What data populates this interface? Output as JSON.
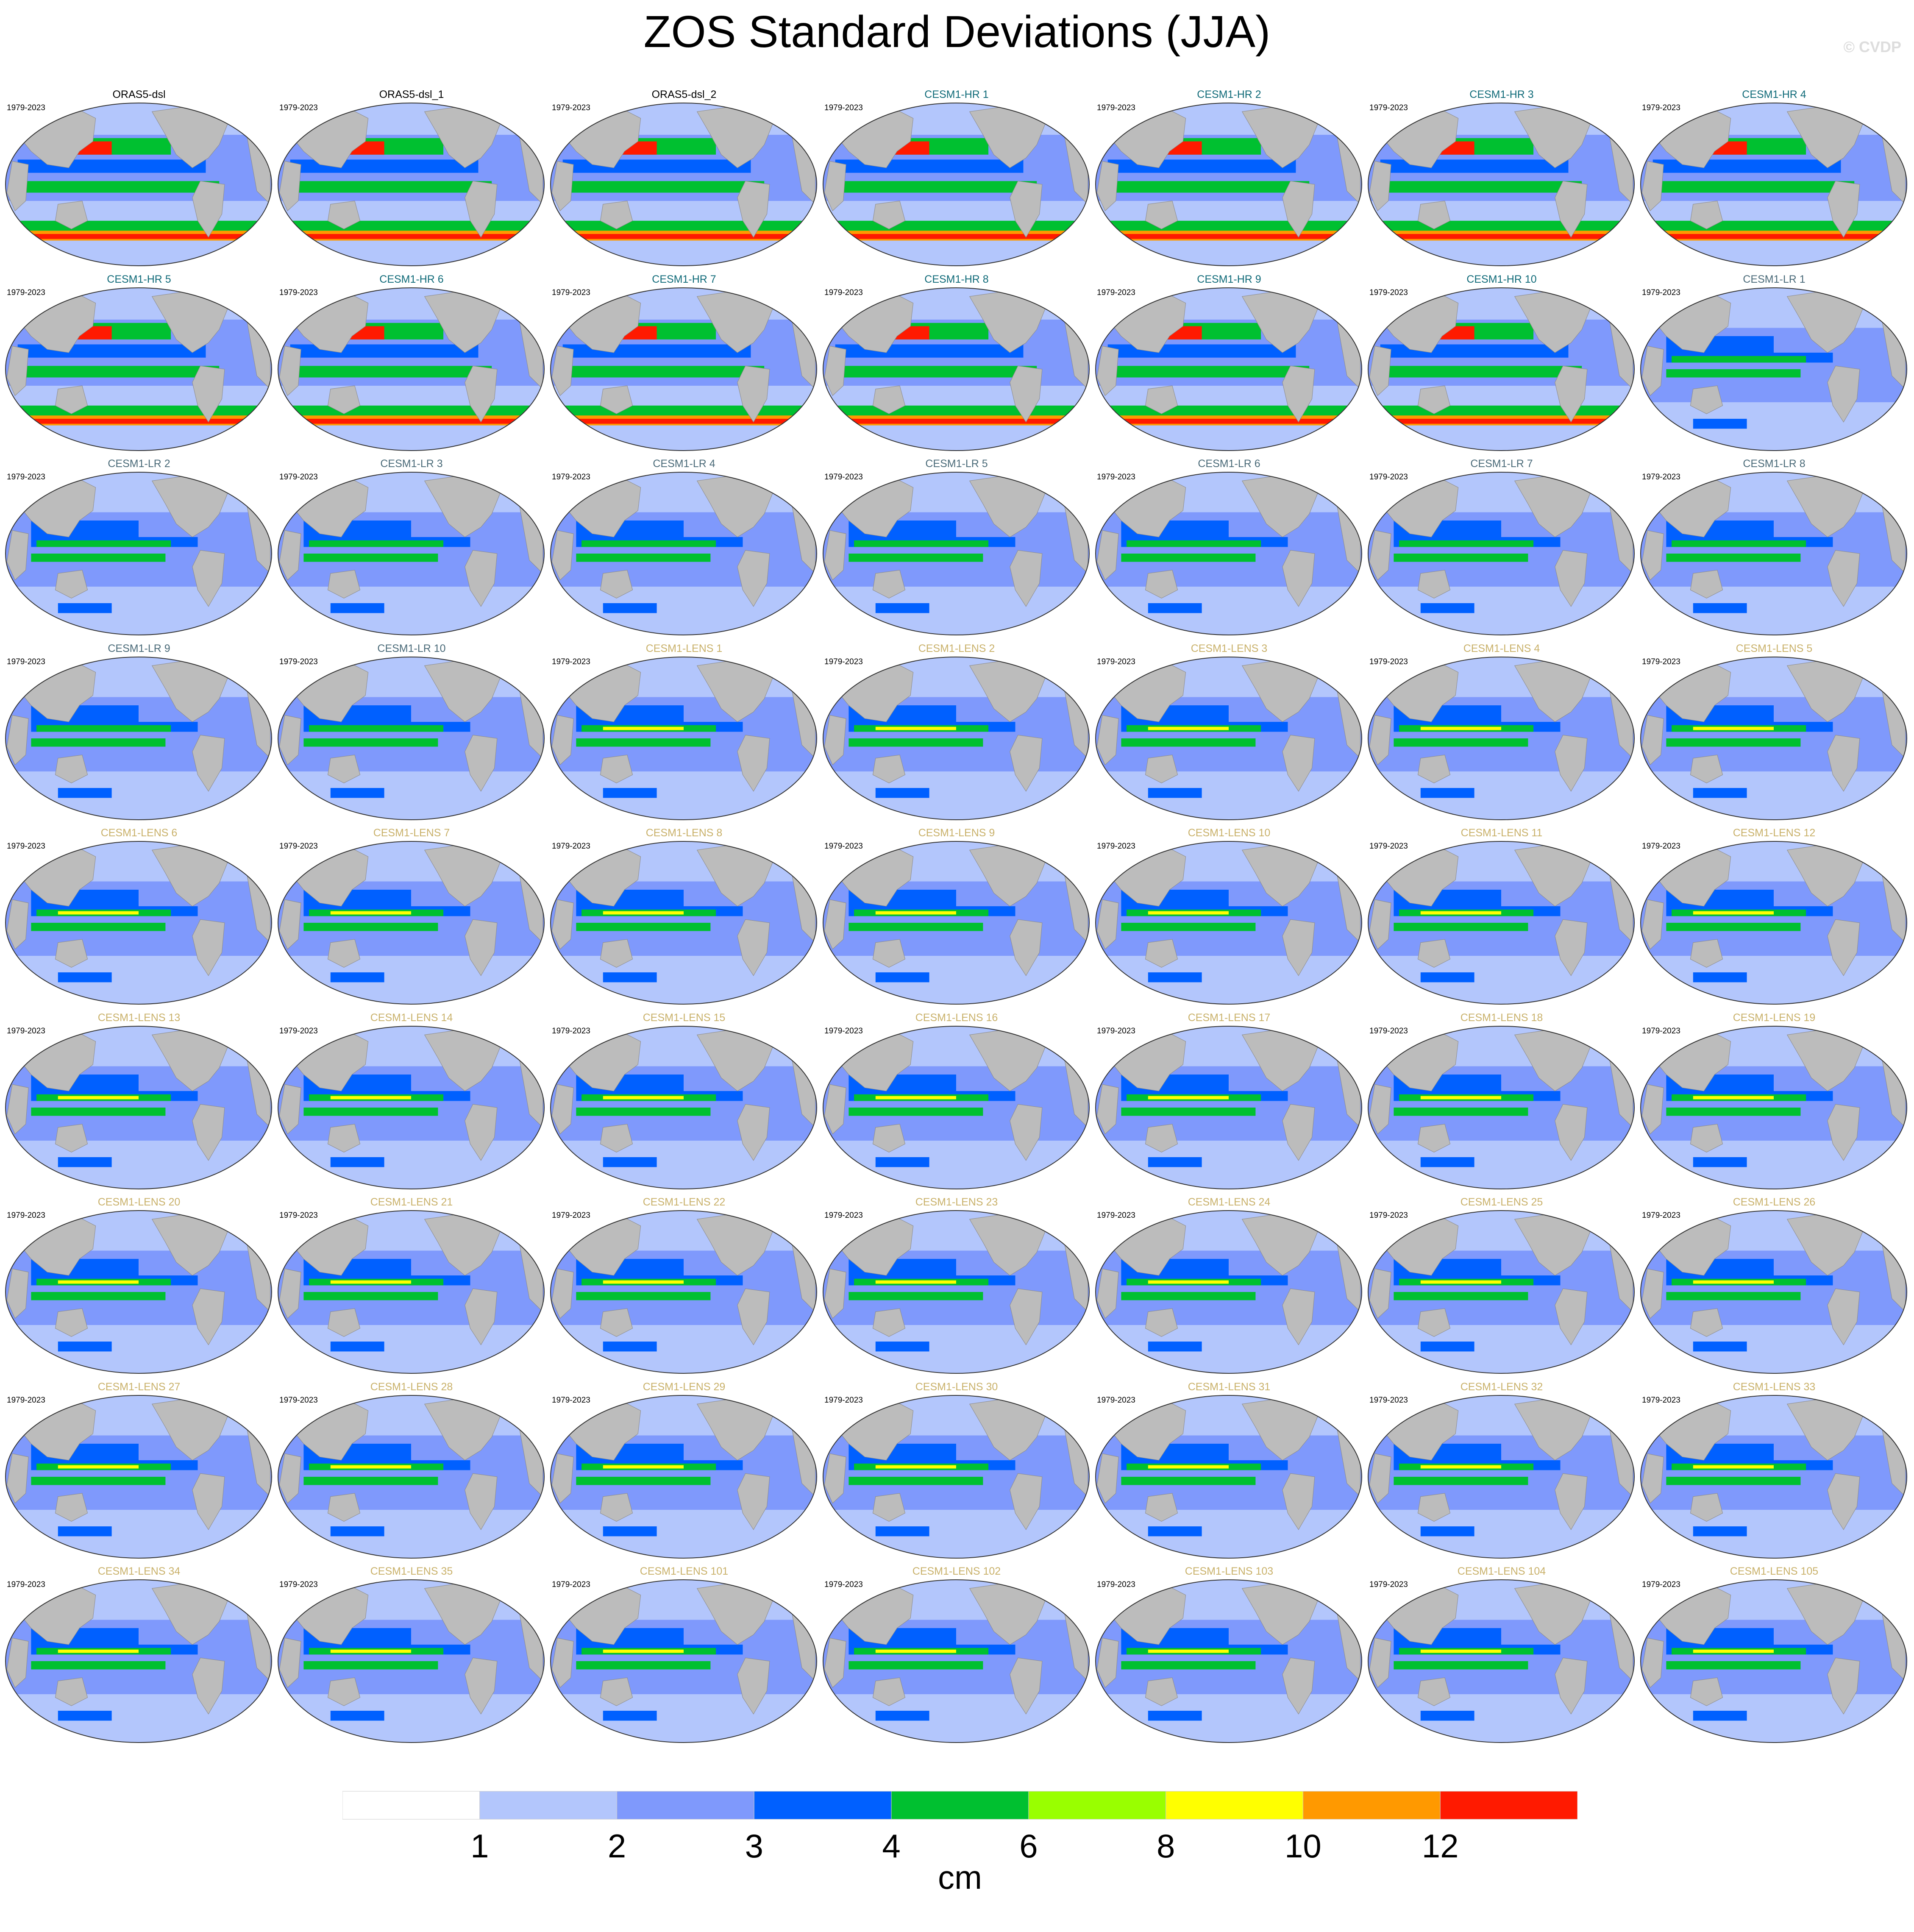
{
  "title": "ZOS Standard Deviations (JJA)",
  "watermark": "© CVDP",
  "period": "1979-2023",
  "colors": {
    "ocean_land": "#bcbcbc",
    "title_obs": "#000000",
    "title_hr": "#0f6a78",
    "title_lr": "#4a6a78",
    "title_lens": "#c9b16a"
  },
  "panels": [
    {
      "title": "ORAS5-dsl",
      "group": "obs"
    },
    {
      "title": "ORAS5-dsl_1",
      "group": "obs"
    },
    {
      "title": "ORAS5-dsl_2",
      "group": "obs"
    },
    {
      "title": "CESM1-HR 1",
      "group": "hr"
    },
    {
      "title": "CESM1-HR 2",
      "group": "hr"
    },
    {
      "title": "CESM1-HR 3",
      "group": "hr"
    },
    {
      "title": "CESM1-HR 4",
      "group": "hr"
    },
    {
      "title": "CESM1-HR 5",
      "group": "hr"
    },
    {
      "title": "CESM1-HR 6",
      "group": "hr"
    },
    {
      "title": "CESM1-HR 7",
      "group": "hr"
    },
    {
      "title": "CESM1-HR 8",
      "group": "hr"
    },
    {
      "title": "CESM1-HR 9",
      "group": "hr"
    },
    {
      "title": "CESM1-HR 10",
      "group": "hr"
    },
    {
      "title": "CESM1-LR 1",
      "group": "lr"
    },
    {
      "title": "CESM1-LR 2",
      "group": "lr"
    },
    {
      "title": "CESM1-LR 3",
      "group": "lr"
    },
    {
      "title": "CESM1-LR 4",
      "group": "lr"
    },
    {
      "title": "CESM1-LR 5",
      "group": "lr"
    },
    {
      "title": "CESM1-LR 6",
      "group": "lr"
    },
    {
      "title": "CESM1-LR 7",
      "group": "lr"
    },
    {
      "title": "CESM1-LR 8",
      "group": "lr"
    },
    {
      "title": "CESM1-LR 9",
      "group": "lr"
    },
    {
      "title": "CESM1-LR 10",
      "group": "lr"
    },
    {
      "title": "CESM1-LENS 1",
      "group": "lens"
    },
    {
      "title": "CESM1-LENS 2",
      "group": "lens"
    },
    {
      "title": "CESM1-LENS 3",
      "group": "lens"
    },
    {
      "title": "CESM1-LENS 4",
      "group": "lens"
    },
    {
      "title": "CESM1-LENS 5",
      "group": "lens"
    },
    {
      "title": "CESM1-LENS 6",
      "group": "lens"
    },
    {
      "title": "CESM1-LENS 7",
      "group": "lens"
    },
    {
      "title": "CESM1-LENS 8",
      "group": "lens"
    },
    {
      "title": "CESM1-LENS 9",
      "group": "lens"
    },
    {
      "title": "CESM1-LENS 10",
      "group": "lens"
    },
    {
      "title": "CESM1-LENS 11",
      "group": "lens"
    },
    {
      "title": "CESM1-LENS 12",
      "group": "lens"
    },
    {
      "title": "CESM1-LENS 13",
      "group": "lens"
    },
    {
      "title": "CESM1-LENS 14",
      "group": "lens"
    },
    {
      "title": "CESM1-LENS 15",
      "group": "lens"
    },
    {
      "title": "CESM1-LENS 16",
      "group": "lens"
    },
    {
      "title": "CESM1-LENS 17",
      "group": "lens"
    },
    {
      "title": "CESM1-LENS 18",
      "group": "lens"
    },
    {
      "title": "CESM1-LENS 19",
      "group": "lens"
    },
    {
      "title": "CESM1-LENS 20",
      "group": "lens"
    },
    {
      "title": "CESM1-LENS 21",
      "group": "lens"
    },
    {
      "title": "CESM1-LENS 22",
      "group": "lens"
    },
    {
      "title": "CESM1-LENS 23",
      "group": "lens"
    },
    {
      "title": "CESM1-LENS 24",
      "group": "lens"
    },
    {
      "title": "CESM1-LENS 25",
      "group": "lens"
    },
    {
      "title": "CESM1-LENS 26",
      "group": "lens"
    },
    {
      "title": "CESM1-LENS 27",
      "group": "lens"
    },
    {
      "title": "CESM1-LENS 28",
      "group": "lens"
    },
    {
      "title": "CESM1-LENS 29",
      "group": "lens"
    },
    {
      "title": "CESM1-LENS 30",
      "group": "lens"
    },
    {
      "title": "CESM1-LENS 31",
      "group": "lens"
    },
    {
      "title": "CESM1-LENS 32",
      "group": "lens"
    },
    {
      "title": "CESM1-LENS 33",
      "group": "lens"
    },
    {
      "title": "CESM1-LENS 34",
      "group": "lens"
    },
    {
      "title": "CESM1-LENS 35",
      "group": "lens"
    },
    {
      "title": "CESM1-LENS 101",
      "group": "lens"
    },
    {
      "title": "CESM1-LENS 102",
      "group": "lens"
    },
    {
      "title": "CESM1-LENS 103",
      "group": "lens"
    },
    {
      "title": "CESM1-LENS 104",
      "group": "lens"
    },
    {
      "title": "CESM1-LENS 105",
      "group": "lens"
    }
  ],
  "colorbar": {
    "units": "cm",
    "colors": [
      "#ffffff",
      "#b3c6fc",
      "#7f99fc",
      "#0060ff",
      "#00c030",
      "#99ff00",
      "#ffff00",
      "#ff9900",
      "#ff1a00"
    ],
    "tick_labels": [
      "1",
      "2",
      "3",
      "4",
      "6",
      "8",
      "10",
      "12"
    ]
  }
}
